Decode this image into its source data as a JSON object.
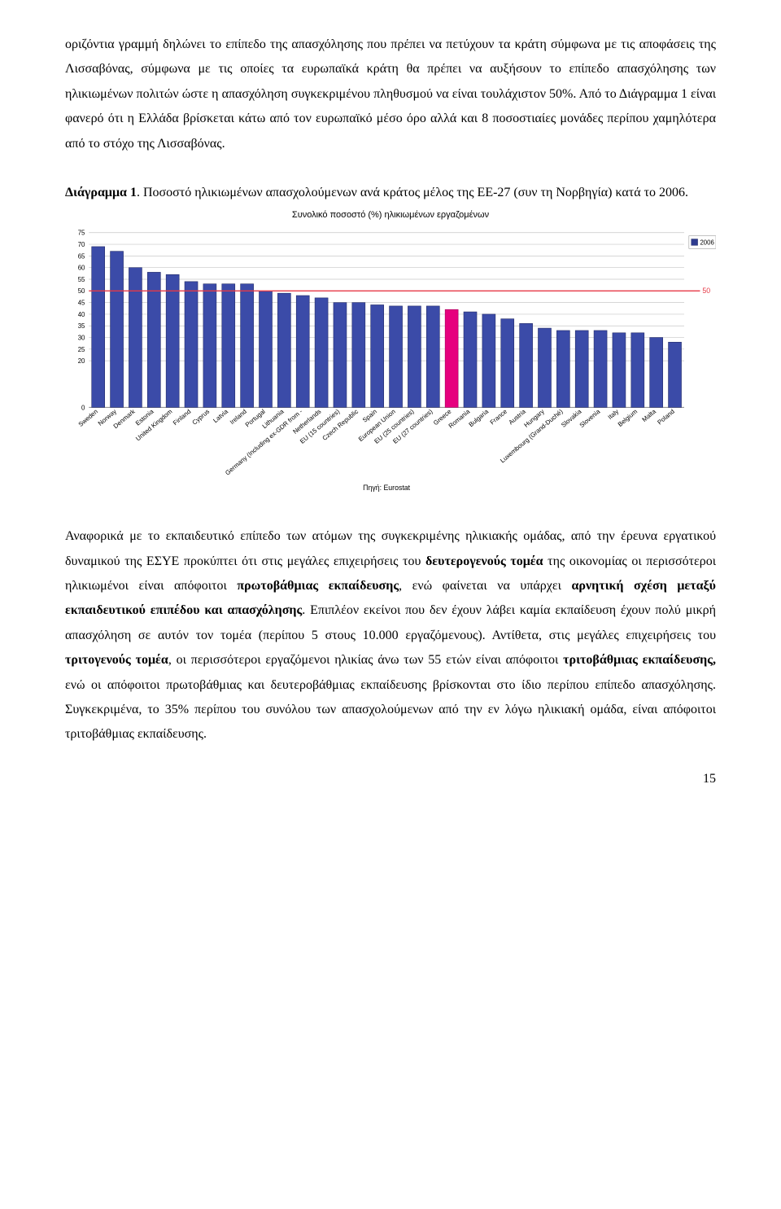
{
  "paragraphs": {
    "p1": "οριζόντια γραμμή δηλώνει το επίπεδο της απασχόλησης που πρέπει να πετύχουν τα κράτη σύμφωνα με τις αποφάσεις της Λισσαβόνας, σύμφωνα με τις οποίες τα ευρωπαϊκά κράτη θα πρέπει να αυξήσουν το επίπεδο απασχόλησης των ηλικιωμένων πολιτών ώστε η απασχόληση συγκεκριμένου πληθυσμού να είναι τουλάχιστον 50%. Από το Διάγραμμα 1 είναι φανερό ότι η Ελλάδα βρίσκεται κάτω από τον ευρωπαϊκό μέσο όρο αλλά και 8 ποσοστιαίες μονάδες περίπου χαμηλότερα από το στόχο της Λισσαβόνας.",
    "caption_bold": "Διάγραμμα 1",
    "caption_rest": ". Ποσοστό ηλικιωμένων απασχολούμενων ανά κράτος μέλος της ΕΕ-27 (συν τη Νορβηγία) κατά το 2006.",
    "p2_html": "Αναφορικά με το εκπαιδευτικό επίπεδο των ατόμων της συγκεκριμένης ηλικιακής ομάδας, από την έρευνα εργατικού δυναμικού της ΕΣΥΕ προκύπτει ότι στις μεγάλες επιχειρήσεις του <span class=\"bold\">δευτερογενούς τομέα</span> της οικονομίας οι περισσότεροι ηλικιωμένοι είναι απόφοιτοι <span class=\"bold\">πρωτοβάθμιας εκπαίδευσης</span>, ενώ φαίνεται να υπάρχει <span class=\"bold\">αρνητική σχέση μεταξύ εκπαιδευτικού επιπέδου και απασχόλησης</span>. Επιπλέον εκείνοι που δεν έχουν λάβει καμία εκπαίδευση έχουν πολύ μικρή απασχόληση σε αυτόν τον τομέα (περίπου 5 στους 10.000 εργαζόμενους). Αντίθετα, στις μεγάλες επιχειρήσεις του <span class=\"bold\">τριτογενούς τομέα</span>, οι περισσότεροι εργαζόμενοι ηλικίας άνω των 55 ετών είναι απόφοιτοι <span class=\"bold\">τριτοβάθμιας εκπαίδευσης,</span> ενώ οι απόφοιτοι πρωτοβάθμιας και δευτεροβάθμιας εκπαίδευσης βρίσκονται στο ίδιο περίπου επίπεδο απασχόλησης. Συγκεκριμένα, το 35% περίπου του συνόλου των απασχολούμενων από την εν λόγω ηλικιακή ομάδα, είναι απόφοιτοι τριτοβάθμιας εκπαίδευσης."
  },
  "page_number": "15",
  "chart": {
    "type": "bar",
    "title": "Συνολικό ποσοστό (%) ηλικιωμένων εργαζομένων",
    "source_label": "Πηγή: Eurostat",
    "legend_label": "2006",
    "legend_color": "#2e3b8f",
    "threshold_value": 50,
    "threshold_label": "50",
    "threshold_color": "#e63946",
    "background_color": "#ffffff",
    "grid_color": "#c8c8c8",
    "bar_color": "#3b4ba8",
    "bar_edge_color": "#222a66",
    "highlight_color": "#e6007e",
    "axis_fontsize": 8,
    "ylim": [
      0,
      75
    ],
    "yticks": [
      0,
      20,
      25,
      30,
      35,
      40,
      45,
      50,
      55,
      60,
      65,
      70,
      75
    ],
    "gridlines": [
      20,
      25,
      30,
      35,
      40,
      45,
      50,
      55,
      60,
      65,
      70,
      75
    ],
    "categories": [
      "Sweden",
      "Norway",
      "Denmark",
      "Estonia",
      "United Kingdom",
      "Finland",
      "Cyprus",
      "Latvia",
      "Ireland",
      "Portugal",
      "Lithuania",
      "Germany (Including ex-GDR from -",
      "Netherlands",
      "EU (15 countries)",
      "Czech Republic",
      "Spain",
      "European Union",
      "EU (25 countries)",
      "EU (27 countries)",
      "Greece",
      "Romania",
      "Bulgaria",
      "France",
      "Austria",
      "Hungary",
      "Luxembourg (Grand-Duché)",
      "Slovakia",
      "Slovenia",
      "Italy",
      "Belgium",
      "Malta",
      "Poland"
    ],
    "values": [
      69,
      67,
      60,
      58,
      57,
      54,
      53,
      53,
      53,
      50,
      49,
      48,
      47,
      45,
      45,
      44,
      43.5,
      43.5,
      43.5,
      42,
      41,
      40,
      38,
      36,
      34,
      33,
      33,
      33,
      32,
      32,
      30,
      28
    ],
    "highlight_index": 19,
    "bar_width": 0.7
  }
}
